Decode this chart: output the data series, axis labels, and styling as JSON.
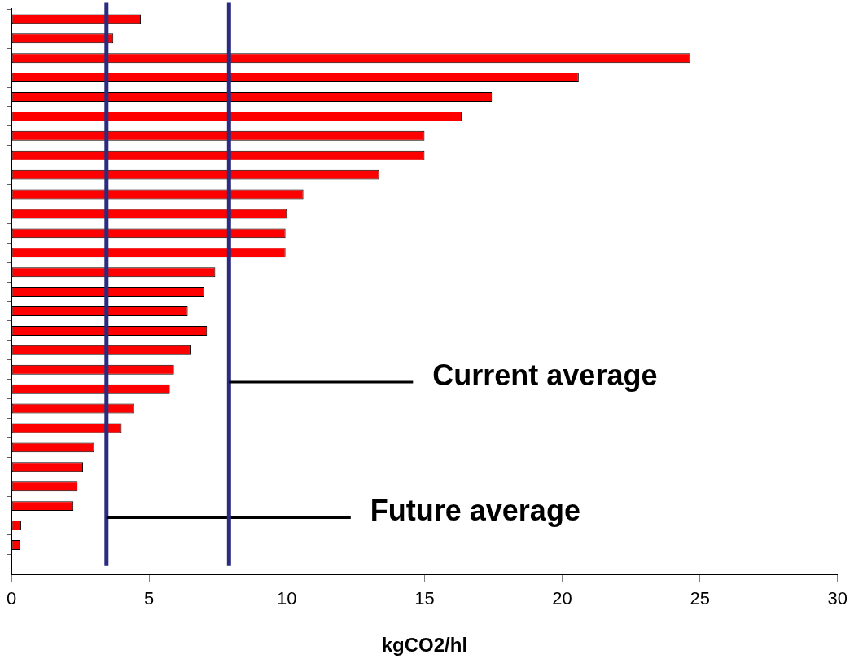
{
  "chart_data": {
    "type": "bar",
    "orientation": "horizontal",
    "xlabel": "kgCO2/hl",
    "categories": [
      null,
      null,
      null,
      null,
      null,
      null,
      null,
      null,
      null,
      null,
      null,
      null,
      null,
      null,
      null,
      null,
      null,
      null,
      null,
      null,
      null,
      null,
      null,
      null,
      null,
      null,
      null,
      null,
      null
    ],
    "values": [
      4.7,
      3.7,
      24.65,
      20.6,
      17.45,
      16.35,
      15.0,
      15.0,
      13.35,
      10.6,
      10.0,
      9.95,
      9.95,
      7.4,
      7.0,
      6.4,
      7.1,
      6.5,
      5.9,
      5.75,
      4.45,
      4.0,
      3.0,
      2.6,
      2.4,
      2.25,
      0.35,
      0.3,
      null
    ],
    "color": "#ff0000",
    "xlim": [
      0,
      30
    ],
    "xticks": [
      0,
      5,
      10,
      15,
      20,
      25,
      30
    ],
    "grid": false,
    "legend": false,
    "ref_lines": [
      {
        "axis": "x",
        "value": 3.45,
        "label": "Future average",
        "color": "#2b2b7f"
      },
      {
        "axis": "x",
        "value": 7.9,
        "label": "Current average",
        "color": "#2b2b7f"
      }
    ]
  }
}
